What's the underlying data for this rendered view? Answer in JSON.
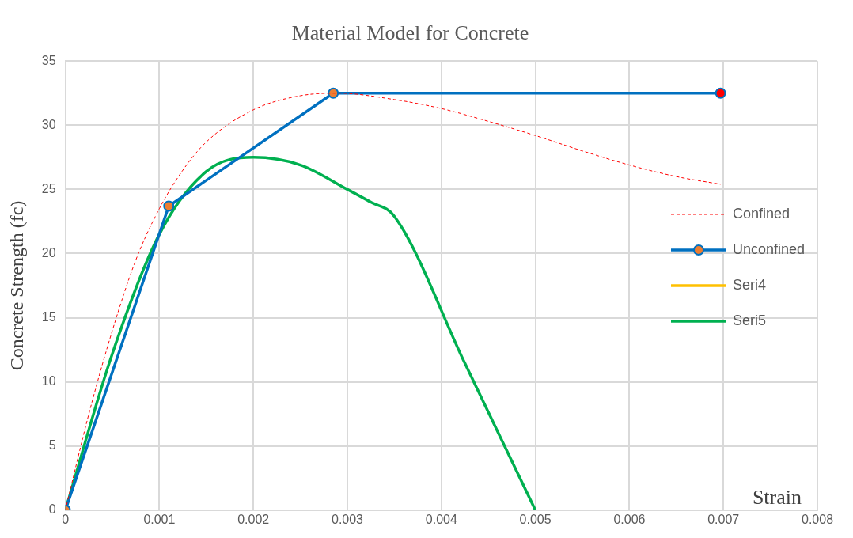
{
  "chart_data": {
    "type": "line",
    "title": "Material Model for Concrete",
    "xlabel": "Strain",
    "ylabel": "Concrete Strength (fc)",
    "xlim": [
      0,
      0.008
    ],
    "xticks": [
      0,
      0.001,
      0.002,
      0.003,
      0.004,
      0.005,
      0.006,
      0.007,
      0.008
    ],
    "ylim": [
      0,
      35
    ],
    "yticks": [
      0,
      5,
      10,
      15,
      20,
      25,
      30,
      35
    ],
    "grid": true,
    "legend": "right",
    "marker": "none",
    "series": [
      {
        "name": "Confined",
        "color": "#ff0000",
        "line_style": "dashed",
        "x": [
          0,
          0.00025,
          0.0005,
          0.00075,
          0.001,
          0.00125,
          0.0015,
          0.002,
          0.0025,
          0.0029,
          0.0035,
          0.004,
          0.0045,
          0.005,
          0.0055,
          0.006,
          0.0065,
          0.00697
        ],
        "values": [
          0,
          7.5,
          14,
          19.5,
          23.5,
          26.5,
          28.7,
          31.2,
          32.3,
          32.5,
          32,
          31.3,
          30.3,
          29.2,
          28,
          26.9,
          26,
          25.4
        ]
      },
      {
        "name": "Unconfined",
        "color": "#0070c0",
        "marker": "circle",
        "colors": [
          "#ed7d31",
          "#ed7d31",
          "#ed7d31",
          "#ff0000"
        ],
        "x": [
          0,
          0.0011,
          0.00285,
          0.00697
        ],
        "values": [
          0,
          23.7,
          32.5,
          32.5
        ]
      },
      {
        "name": "Seri4",
        "color": "#ffc000"
      },
      {
        "name": "Seri5",
        "color": "#00b050",
        "x": [
          0,
          0.0005,
          0.001,
          0.0015,
          0.002,
          0.0025,
          0.003,
          0.00325,
          0.0035,
          0.00425,
          0.005
        ],
        "values": [
          0,
          12.2,
          21.5,
          26.4,
          27.5,
          26.9,
          25,
          24,
          22.9,
          11.45,
          0
        ]
      }
    ]
  }
}
